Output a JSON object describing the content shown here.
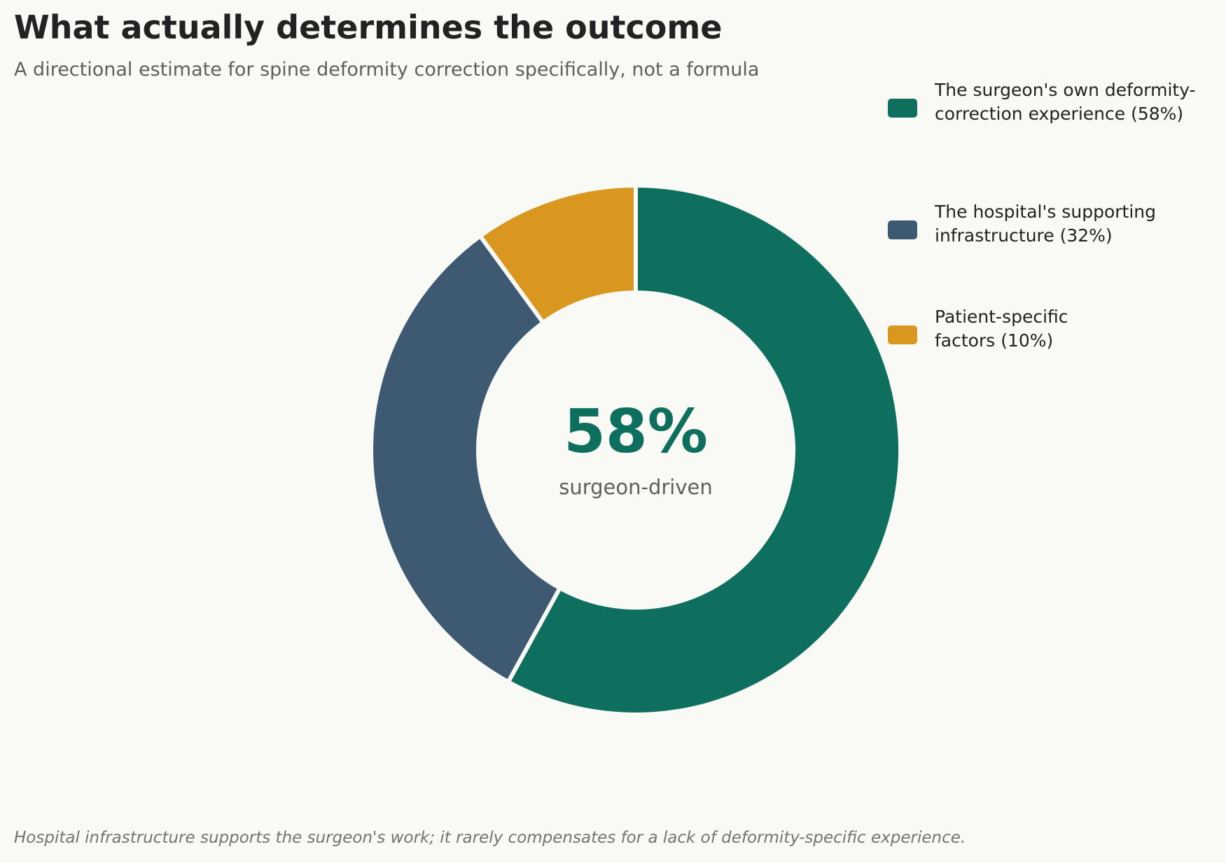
{
  "title": "What actually determines the outcome",
  "subtitle": "A directional estimate for spine deformity correction specifically, not a formula",
  "footnote": "Hospital infrastructure supports the surgeon's work; it rarely compensates for a lack of deformity-specific experience.",
  "center": {
    "value": "58%",
    "label": "surgeon-driven"
  },
  "legend": {
    "items": [
      {
        "line1": "The surgeon's own deformity-",
        "line2": "correction experience  (58%)"
      },
      {
        "line1": "The hospital's supporting",
        "line2": "infrastructure  (32%)"
      },
      {
        "line1": "Patient-specific",
        "line2": "factors  (10%)"
      }
    ]
  },
  "chart_data": {
    "type": "pie",
    "variant": "donut",
    "title": "What actually determines the outcome",
    "subtitle": "A directional estimate for spine deformity correction specifically, not a formula",
    "categories": [
      "The surgeon's own deformity-correction experience",
      "The hospital's supporting infrastructure",
      "Patient-specific factors"
    ],
    "values": [
      58,
      32,
      10
    ],
    "unit": "%",
    "colors": [
      "#0e6f5e",
      "#3d5a72",
      "#d9971f"
    ],
    "start_angle": "12 o'clock",
    "direction": "clockwise",
    "legend_position": "top-right",
    "center_annotation": "58% surgeon-driven"
  }
}
